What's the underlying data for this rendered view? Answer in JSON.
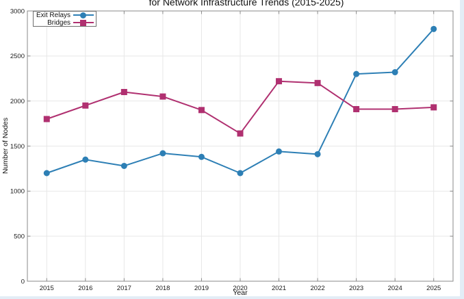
{
  "page": {
    "background": "#ffffff",
    "edge_color": "#e3edf6"
  },
  "chart_data": {
    "type": "line",
    "title": "for Network Infrastructure Trends (2015-2025)",
    "xlabel": "Year",
    "ylabel": "Number of Nodes",
    "x": [
      2015,
      2016,
      2017,
      2018,
      2019,
      2020,
      2021,
      2022,
      2023,
      2024,
      2025
    ],
    "series": [
      {
        "name": "Exit Relays",
        "color": "#2d7fb5",
        "marker": "circle",
        "values": [
          1200,
          1350,
          1280,
          1420,
          1380,
          1200,
          1440,
          1410,
          2300,
          2320,
          2800
        ]
      },
      {
        "name": "Bridges",
        "color": "#b03070",
        "marker": "square",
        "values": [
          1800,
          1950,
          2100,
          2050,
          1900,
          1640,
          2220,
          2200,
          1910,
          1910,
          1930
        ]
      }
    ],
    "xlim": [
      2014.5,
      2025.5
    ],
    "ylim": [
      0,
      3000
    ],
    "xticks": [
      2015,
      2016,
      2017,
      2018,
      2019,
      2020,
      2021,
      2022,
      2023,
      2024,
      2025
    ],
    "yticks": [
      0,
      500,
      1000,
      1500,
      2000,
      2500,
      3000
    ],
    "grid": true,
    "legend_position": "top-left",
    "style": {
      "frame_color": "#8a8a8a",
      "grid_color": "#e7e7e7",
      "line_width": 2,
      "marker_size": 9
    }
  }
}
